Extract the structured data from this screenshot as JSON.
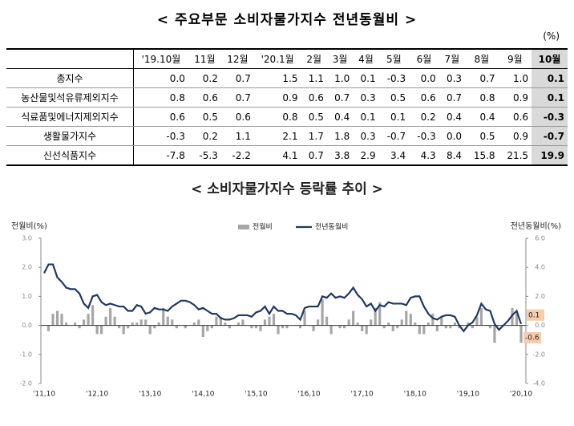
{
  "table": {
    "title": "< 주요부문 소비자물가지수 전년동월비 >",
    "unit": "(%)",
    "header": [
      "'19.10월",
      "11월",
      "12월",
      "'20.1월",
      "2월",
      "3월",
      "4월",
      "5월",
      "6월",
      "7월",
      "8월",
      "9월",
      "10월"
    ],
    "rows": [
      {
        "label": "총지수",
        "values": [
          "0.0",
          "0.2",
          "0.7",
          "1.5",
          "1.1",
          "1.0",
          "0.1",
          "-0.3",
          "0.0",
          "0.3",
          "0.7",
          "1.0",
          "0.1"
        ]
      },
      {
        "label": "농산물및석유류제외지수",
        "values": [
          "0.8",
          "0.6",
          "0.7",
          "0.9",
          "0.6",
          "0.7",
          "0.3",
          "0.5",
          "0.6",
          "0.7",
          "0.8",
          "0.9",
          "0.1"
        ]
      },
      {
        "label": "식료품및에너지제외지수",
        "values": [
          "0.6",
          "0.5",
          "0.6",
          "0.8",
          "0.5",
          "0.4",
          "0.1",
          "0.1",
          "0.2",
          "0.4",
          "0.4",
          "0.6",
          "-0.3"
        ]
      },
      {
        "label": "생활물가지수",
        "values": [
          "-0.3",
          "0.2",
          "1.1",
          "2.1",
          "1.7",
          "1.8",
          "0.3",
          "-0.7",
          "-0.3",
          "0.0",
          "0.5",
          "0.9",
          "-0.7"
        ]
      },
      {
        "label": "신선식품지수",
        "values": [
          "-7.8",
          "-5.3",
          "-2.2",
          "4.1",
          "0.7",
          "3.8",
          "2.9",
          "3.4",
          "4.3",
          "8.4",
          "15.8",
          "21.5",
          "19.9"
        ]
      }
    ]
  },
  "chart_data": {
    "type": "combo",
    "title": "< 소비자물가지수 등락률 추이 >",
    "y_label": "전월비(%)",
    "y2_label": "전년동월비(%)",
    "ylim": [
      -2,
      3
    ],
    "yticks": [
      {
        "value": -2,
        "label": "-2.0"
      },
      {
        "value": -1,
        "label": "-1.0"
      },
      {
        "value": 0,
        "label": "0.0"
      },
      {
        "value": 1,
        "label": "1.0"
      },
      {
        "value": 2,
        "label": "2.0"
      },
      {
        "value": 3,
        "label": "3.0"
      }
    ],
    "y2lim": [
      -4,
      6
    ],
    "y2ticks": [
      {
        "value": -4,
        "label": "-4.0"
      },
      {
        "value": -2,
        "label": "-2.0"
      },
      {
        "value": 0,
        "label": "0.0"
      },
      {
        "value": 2,
        "label": "2.0"
      },
      {
        "value": 4,
        "label": "4.0"
      },
      {
        "value": 6,
        "label": "6.0"
      }
    ],
    "grid": false,
    "legend": "top",
    "categories": [
      "'11,10",
      null,
      null,
      null,
      null,
      null,
      null,
      null,
      null,
      null,
      null,
      null,
      "'12,10",
      null,
      null,
      null,
      null,
      null,
      null,
      null,
      null,
      null,
      null,
      null,
      "'13,10",
      null,
      null,
      null,
      null,
      null,
      null,
      null,
      null,
      null,
      null,
      null,
      "'14,10",
      null,
      null,
      null,
      null,
      null,
      null,
      null,
      null,
      null,
      null,
      null,
      "'15,10",
      null,
      null,
      null,
      null,
      null,
      null,
      null,
      null,
      null,
      null,
      null,
      "'16,10",
      null,
      null,
      null,
      null,
      null,
      null,
      null,
      null,
      null,
      null,
      null,
      "'17,10",
      null,
      null,
      null,
      null,
      null,
      null,
      null,
      null,
      null,
      null,
      null,
      "'18,10",
      null,
      null,
      null,
      null,
      null,
      null,
      null,
      null,
      null,
      null,
      null,
      "'19,10",
      null,
      null,
      null,
      null,
      null,
      null,
      null,
      null,
      null,
      null,
      null,
      "'20,10"
    ],
    "series": [
      {
        "name": "전월비",
        "type": "bar",
        "color": "#a6a6a6",
        "values": [
          0.0,
          -0.2,
          0.4,
          0.5,
          0.4,
          0.1,
          0.0,
          0.1,
          -0.1,
          0.2,
          0.4,
          0.7,
          -0.3,
          -0.3,
          0.3,
          0.6,
          0.3,
          -0.1,
          -0.3,
          -0.1,
          0.1,
          0.1,
          0.2,
          0.2,
          -0.3,
          -0.1,
          0.1,
          0.6,
          0.3,
          0.2,
          -0.1,
          0.0,
          -0.1,
          0.0,
          0.1,
          0.2,
          -0.4,
          -0.2,
          -0.1,
          0.3,
          0.3,
          0.1,
          -0.1,
          0.0,
          0.1,
          0.2,
          0.0,
          -0.1,
          -0.1,
          -0.2,
          0.2,
          0.3,
          0.4,
          -0.3,
          -0.1,
          -0.1,
          0.0,
          0.0,
          -0.1,
          0.5,
          0.0,
          -0.2,
          0.2,
          0.9,
          0.3,
          -0.3,
          0.0,
          -0.1,
          -0.1,
          0.2,
          0.5,
          0.1,
          -0.2,
          -0.3,
          0.2,
          0.6,
          0.8,
          -0.1,
          0.1,
          -0.2,
          -0.1,
          0.2,
          0.5,
          0.4,
          0.1,
          -0.3,
          -0.3,
          0.1,
          0.4,
          -0.2,
          0.3,
          -0.1,
          -0.1,
          0.1,
          -0.1,
          0.0,
          0.1,
          -0.1,
          0.3,
          0.6,
          0.0,
          -0.1,
          -0.6,
          0.0,
          0.0,
          0.0,
          0.6,
          0.4,
          -0.6
        ]
      },
      {
        "name": "전년동월비",
        "type": "line",
        "axis": "y2",
        "color": "#1f3864",
        "values": [
          3.6,
          4.2,
          4.2,
          3.3,
          3.0,
          2.6,
          2.5,
          2.5,
          2.2,
          1.5,
          1.2,
          2.0,
          2.1,
          1.6,
          1.4,
          1.5,
          1.4,
          1.3,
          1.3,
          1.0,
          1.0,
          1.4,
          1.3,
          0.8,
          0.9,
          1.2,
          1.1,
          1.1,
          1.0,
          1.3,
          1.5,
          1.7,
          1.7,
          1.6,
          1.4,
          1.1,
          1.2,
          1.0,
          0.8,
          0.8,
          0.5,
          0.4,
          0.4,
          0.5,
          0.7,
          0.7,
          0.7,
          0.6,
          0.9,
          1.0,
          1.3,
          0.8,
          1.3,
          1.0,
          1.0,
          0.8,
          0.8,
          0.7,
          0.4,
          1.2,
          1.3,
          1.3,
          1.3,
          2.0,
          1.9,
          2.2,
          1.9,
          2.0,
          1.9,
          2.2,
          2.6,
          2.1,
          1.8,
          1.3,
          1.5,
          1.0,
          1.4,
          1.3,
          1.6,
          1.5,
          1.5,
          1.5,
          1.4,
          1.9,
          2.0,
          2.0,
          1.3,
          0.8,
          0.5,
          0.4,
          0.6,
          0.7,
          0.7,
          0.6,
          0.0,
          -0.4,
          0.0,
          0.2,
          0.7,
          1.5,
          1.1,
          1.0,
          0.1,
          -0.3,
          0.0,
          0.3,
          0.7,
          1.0,
          0.1
        ]
      }
    ]
  }
}
